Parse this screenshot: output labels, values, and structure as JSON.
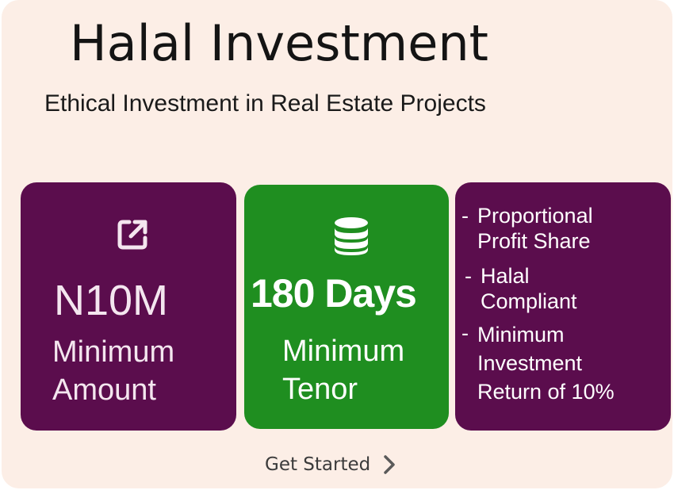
{
  "header": {
    "title": "Halal Investment",
    "subtitle": "Ethical Investment in Real Estate Projects"
  },
  "cards": {
    "amount": {
      "icon": "external-link-icon",
      "value": "N10M",
      "label_line1": "Minimum",
      "label_line2": "Amount"
    },
    "tenor": {
      "icon": "database-icon",
      "value": "180 Days",
      "label_line1": "Minimum",
      "label_line2": "Tenor"
    },
    "features": {
      "items": [
        {
          "dash": "-",
          "line1": "Proportional",
          "line2": "Profit Share"
        },
        {
          "dash": "-",
          "line1": "Halal",
          "line2": "Compliant"
        },
        {
          "dash": "-",
          "line1": "Minimum",
          "line2": "Investment",
          "line3": "Return of 10%"
        }
      ]
    }
  },
  "cta": {
    "label": "Get Started",
    "icon": "chevron-right-icon"
  },
  "colors": {
    "background": "#fceee6",
    "card_purple": "#5b0d4d",
    "card_green": "#1f8e20"
  }
}
